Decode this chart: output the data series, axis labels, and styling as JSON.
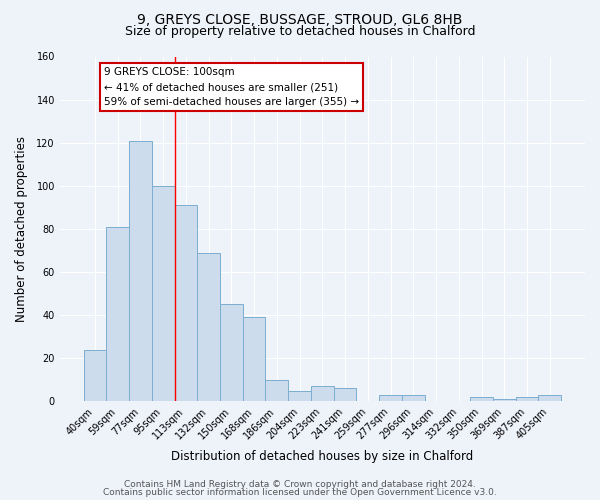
{
  "title_line1": "9, GREYS CLOSE, BUSSAGE, STROUD, GL6 8HB",
  "title_line2": "Size of property relative to detached houses in Chalford",
  "xlabel": "Distribution of detached houses by size in Chalford",
  "ylabel": "Number of detached properties",
  "categories": [
    "40sqm",
    "59sqm",
    "77sqm",
    "95sqm",
    "113sqm",
    "132sqm",
    "150sqm",
    "168sqm",
    "186sqm",
    "204sqm",
    "223sqm",
    "241sqm",
    "259sqm",
    "277sqm",
    "296sqm",
    "314sqm",
    "332sqm",
    "350sqm",
    "369sqm",
    "387sqm",
    "405sqm"
  ],
  "values": [
    24,
    81,
    121,
    100,
    91,
    69,
    45,
    39,
    10,
    5,
    7,
    6,
    0,
    3,
    3,
    0,
    0,
    2,
    1,
    2,
    3
  ],
  "bar_color": "#ccdcec",
  "bar_edge_color": "#7aaed0",
  "red_line_x": 3.5,
  "annotation_title": "9 GREYS CLOSE: 100sqm",
  "annotation_line1": "← 41% of detached houses are smaller (251)",
  "annotation_line2": "59% of semi-detached houses are larger (355) →",
  "annotation_box_color": "#ffffff",
  "annotation_box_edge_color": "#cc0000",
  "ylim": [
    0,
    160
  ],
  "yticks": [
    0,
    20,
    40,
    60,
    80,
    100,
    120,
    140,
    160
  ],
  "footer_line1": "Contains HM Land Registry data © Crown copyright and database right 2024.",
  "footer_line2": "Contains public sector information licensed under the Open Government Licence v3.0.",
  "background_color": "#eef2f9",
  "grid_color": "#ffffff",
  "title_fontsize": 10,
  "subtitle_fontsize": 9,
  "axis_label_fontsize": 8.5,
  "tick_fontsize": 7,
  "annotation_fontsize": 7.5,
  "footer_fontsize": 6.5
}
